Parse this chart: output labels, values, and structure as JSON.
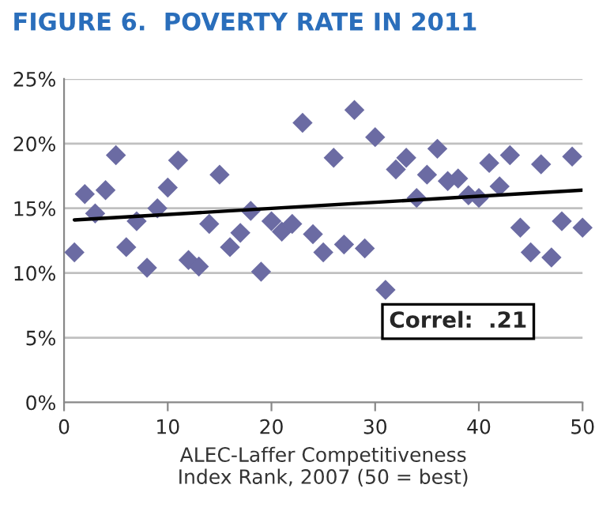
{
  "chart_data": {
    "type": "scatter",
    "title": "FIGURE 6.  POVERTY RATE IN 2011",
    "xlabel": "ALEC-Laffer Competitiveness\nIndex Rank, 2007 (50 = best)",
    "series": [
      {
        "color": "#6b6ba3",
        "marker": "diamond",
        "x": [
          1,
          2,
          3,
          4,
          5,
          6,
          7,
          8,
          9,
          10,
          11,
          12,
          13,
          14,
          15,
          16,
          17,
          18,
          19,
          20,
          21,
          22,
          23,
          24,
          25,
          26,
          27,
          28,
          29,
          30,
          31,
          32,
          33,
          34,
          35,
          36,
          37,
          38,
          39,
          40,
          41,
          42,
          43,
          44,
          45,
          46,
          47,
          48,
          49,
          50
        ],
        "values": [
          11.6,
          16.1,
          14.6,
          16.4,
          19.1,
          12.0,
          14.0,
          10.4,
          15.0,
          16.6,
          18.7,
          11.0,
          10.5,
          13.8,
          17.6,
          12.0,
          13.1,
          14.8,
          10.1,
          14.0,
          13.2,
          13.8,
          21.6,
          13.0,
          11.6,
          18.9,
          12.2,
          22.6,
          11.9,
          20.5,
          8.7,
          18.0,
          18.9,
          15.8,
          17.6,
          19.6,
          17.1,
          17.3,
          16.0,
          15.8,
          18.5,
          16.7,
          19.1,
          13.5,
          11.6,
          18.4,
          11.2,
          14.0,
          19.0,
          13.5
        ]
      },
      {
        "type": "line",
        "color": "#000000",
        "marker": "none",
        "x": [
          1,
          50
        ],
        "values": [
          14.1,
          16.4
        ]
      }
    ],
    "annotations": [
      {
        "text": "Correl:  .21"
      }
    ],
    "xlim": [
      0,
      50
    ],
    "xticks": [
      0,
      10,
      20,
      30,
      40,
      50
    ],
    "ylim": [
      0,
      25
    ],
    "yticks": [
      {
        "value": 0,
        "label": "0%"
      },
      {
        "value": 5,
        "label": "5%"
      },
      {
        "value": 10,
        "label": "10%"
      },
      {
        "value": 15,
        "label": "15%"
      },
      {
        "value": 20,
        "label": "20%"
      },
      {
        "value": 25,
        "label": "25%"
      }
    ],
    "grid": "y",
    "legend": false
  }
}
